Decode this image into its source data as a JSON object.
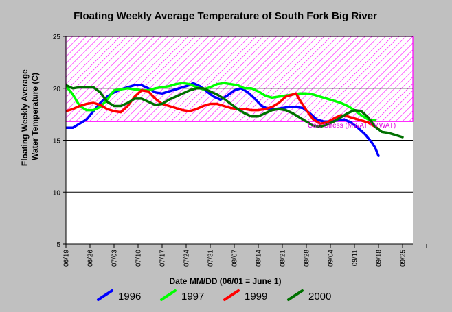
{
  "chart_data": {
    "type": "line",
    "title": "Floating Weekly Average Temperature of South Fork Big River",
    "xlabel": "Date MM/DD (06/01 = June 1)",
    "ylabel": "Floating Weekly Average Water Temperature (C)",
    "ylabel_lines": [
      "Floating Weekly Average",
      "Water Temperature (C)"
    ],
    "ylim": [
      5,
      25
    ],
    "y_ticks": [
      "5",
      "10",
      "15",
      "20",
      "25"
    ],
    "x_tick_labels": [
      "06/19",
      "06/26",
      "07/03",
      "07/10",
      "07/17",
      "07/24",
      "07/31",
      "08/07",
      "08/14",
      "08/21",
      "08/28",
      "09/04",
      "09/11",
      "09/18",
      "09/25"
    ],
    "xlim_days": [
      0,
      101
    ],
    "stress_band": {
      "ymin": 16.8,
      "ymax": 25,
      "color": "#ff00ff"
    },
    "annotation": "Cold Stress (MWAT / MWAT)",
    "grid": "horizontal",
    "legend_position": "bottom",
    "series": [
      {
        "name": "1996",
        "color": "#0000ff",
        "points": [
          [
            0,
            16.2
          ],
          [
            2,
            16.2
          ],
          [
            4,
            16.6
          ],
          [
            6,
            17.0
          ],
          [
            8,
            17.8
          ],
          [
            10,
            18.6
          ],
          [
            12,
            19.2
          ],
          [
            14,
            19.6
          ],
          [
            16,
            19.9
          ],
          [
            18,
            20.1
          ],
          [
            20,
            20.3
          ],
          [
            22,
            20.3
          ],
          [
            24,
            20.0
          ],
          [
            26,
            19.6
          ],
          [
            28,
            19.5
          ],
          [
            30,
            19.7
          ],
          [
            32,
            19.9
          ],
          [
            34,
            20.1
          ],
          [
            36,
            20.3
          ],
          [
            37,
            20.5
          ],
          [
            39,
            20.2
          ],
          [
            41,
            19.7
          ],
          [
            43,
            19.2
          ],
          [
            45,
            18.9
          ],
          [
            47,
            19.3
          ],
          [
            49,
            19.8
          ],
          [
            51,
            20.0
          ],
          [
            53,
            19.6
          ],
          [
            55,
            19.0
          ],
          [
            57,
            18.3
          ],
          [
            59,
            18.0
          ],
          [
            61,
            18.0
          ],
          [
            63,
            18.1
          ],
          [
            65,
            18.2
          ],
          [
            67,
            18.2
          ],
          [
            69,
            18.1
          ],
          [
            71,
            17.6
          ],
          [
            73,
            17.0
          ],
          [
            75,
            16.8
          ],
          [
            77,
            16.8
          ],
          [
            79,
            16.9
          ],
          [
            81,
            17.0
          ],
          [
            83,
            16.7
          ],
          [
            85,
            16.2
          ],
          [
            87,
            15.6
          ],
          [
            89,
            14.8
          ],
          [
            90,
            14.3
          ],
          [
            91,
            13.5
          ]
        ]
      },
      {
        "name": "1997",
        "color": "#00ff00",
        "points": [
          [
            0,
            20.2
          ],
          [
            2,
            19.4
          ],
          [
            4,
            18.3
          ],
          [
            6,
            17.9
          ],
          [
            8,
            17.9
          ],
          [
            10,
            18.2
          ],
          [
            12,
            18.9
          ],
          [
            14,
            19.8
          ],
          [
            16,
            19.9
          ],
          [
            18,
            20.0
          ],
          [
            20,
            19.9
          ],
          [
            22,
            19.8
          ],
          [
            24,
            19.8
          ],
          [
            26,
            20.0
          ],
          [
            28,
            20.1
          ],
          [
            30,
            20.2
          ],
          [
            32,
            20.4
          ],
          [
            34,
            20.5
          ],
          [
            36,
            20.4
          ],
          [
            38,
            20.1
          ],
          [
            40,
            19.9
          ],
          [
            42,
            20.1
          ],
          [
            44,
            20.4
          ],
          [
            46,
            20.5
          ],
          [
            48,
            20.4
          ],
          [
            50,
            20.3
          ],
          [
            52,
            20.0
          ],
          [
            54,
            20.0
          ],
          [
            56,
            19.7
          ],
          [
            58,
            19.3
          ],
          [
            60,
            19.1
          ],
          [
            62,
            19.2
          ],
          [
            64,
            19.3
          ],
          [
            66,
            19.4
          ],
          [
            68,
            19.5
          ],
          [
            70,
            19.5
          ],
          [
            72,
            19.4
          ],
          [
            74,
            19.2
          ],
          [
            76,
            19.0
          ],
          [
            78,
            18.8
          ],
          [
            80,
            18.6
          ],
          [
            82,
            18.3
          ],
          [
            84,
            17.9
          ],
          [
            86,
            17.4
          ],
          [
            88,
            17.0
          ],
          [
            90,
            16.9
          ]
        ]
      },
      {
        "name": "1999",
        "color": "#ff0000",
        "points": [
          [
            0,
            17.8
          ],
          [
            2,
            18.0
          ],
          [
            4,
            18.3
          ],
          [
            6,
            18.5
          ],
          [
            8,
            18.6
          ],
          [
            10,
            18.4
          ],
          [
            12,
            18.0
          ],
          [
            14,
            17.8
          ],
          [
            16,
            17.7
          ],
          [
            18,
            18.3
          ],
          [
            20,
            19.2
          ],
          [
            22,
            19.8
          ],
          [
            24,
            19.7
          ],
          [
            26,
            19.0
          ],
          [
            28,
            18.5
          ],
          [
            30,
            18.3
          ],
          [
            32,
            18.1
          ],
          [
            34,
            17.9
          ],
          [
            36,
            17.8
          ],
          [
            38,
            18.0
          ],
          [
            40,
            18.3
          ],
          [
            42,
            18.5
          ],
          [
            44,
            18.5
          ],
          [
            46,
            18.3
          ],
          [
            48,
            18.1
          ],
          [
            50,
            18.0
          ],
          [
            52,
            18.0
          ],
          [
            54,
            17.9
          ],
          [
            56,
            17.9
          ],
          [
            58,
            18.0
          ],
          [
            60,
            18.2
          ],
          [
            62,
            18.6
          ],
          [
            64,
            19.2
          ],
          [
            66,
            19.4
          ],
          [
            67,
            19.5
          ],
          [
            68,
            18.9
          ],
          [
            70,
            17.9
          ],
          [
            72,
            17.0
          ],
          [
            74,
            16.6
          ],
          [
            76,
            16.7
          ],
          [
            78,
            17.1
          ],
          [
            80,
            17.4
          ],
          [
            82,
            17.3
          ],
          [
            84,
            17.1
          ],
          [
            86,
            16.9
          ],
          [
            88,
            16.7
          ],
          [
            90,
            16.3
          ],
          [
            91,
            16.1
          ]
        ]
      },
      {
        "name": "2000",
        "color": "#007000",
        "points": [
          [
            0,
            20.3
          ],
          [
            2,
            20.0
          ],
          [
            4,
            20.1
          ],
          [
            6,
            20.1
          ],
          [
            8,
            20.1
          ],
          [
            10,
            19.6
          ],
          [
            12,
            18.7
          ],
          [
            14,
            18.3
          ],
          [
            16,
            18.3
          ],
          [
            18,
            18.6
          ],
          [
            20,
            19.0
          ],
          [
            22,
            19.0
          ],
          [
            24,
            18.7
          ],
          [
            26,
            18.4
          ],
          [
            28,
            18.5
          ],
          [
            30,
            18.9
          ],
          [
            32,
            19.2
          ],
          [
            34,
            19.5
          ],
          [
            36,
            19.8
          ],
          [
            38,
            20.0
          ],
          [
            40,
            20.0
          ],
          [
            42,
            19.7
          ],
          [
            44,
            19.4
          ],
          [
            46,
            19.0
          ],
          [
            48,
            18.5
          ],
          [
            50,
            18.0
          ],
          [
            52,
            17.6
          ],
          [
            54,
            17.3
          ],
          [
            56,
            17.3
          ],
          [
            58,
            17.6
          ],
          [
            60,
            17.9
          ],
          [
            62,
            18.0
          ],
          [
            64,
            17.9
          ],
          [
            66,
            17.6
          ],
          [
            68,
            17.2
          ],
          [
            70,
            16.8
          ],
          [
            72,
            16.4
          ],
          [
            74,
            16.3
          ],
          [
            76,
            16.5
          ],
          [
            78,
            16.8
          ],
          [
            80,
            17.2
          ],
          [
            82,
            17.6
          ],
          [
            84,
            17.9
          ],
          [
            86,
            17.8
          ],
          [
            88,
            17.2
          ],
          [
            90,
            16.3
          ],
          [
            92,
            15.8
          ],
          [
            94,
            15.7
          ],
          [
            96,
            15.5
          ],
          [
            98,
            15.3
          ]
        ]
      }
    ]
  }
}
